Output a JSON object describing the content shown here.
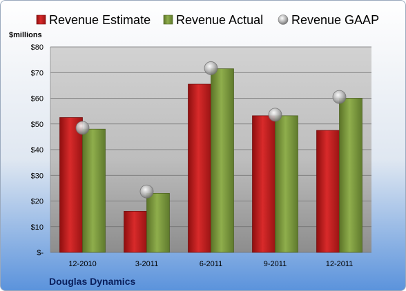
{
  "chart_data": {
    "type": "bar",
    "title": "",
    "ylabel": "$millions",
    "xlabel": "",
    "categories": [
      "12-2010",
      "3-2011",
      "6-2011",
      "9-2011",
      "12-2011"
    ],
    "series": [
      {
        "name": "Revenue Estimate",
        "kind": "bar",
        "color": "#cc1f1f",
        "values": [
          52.5,
          16,
          65.5,
          53.2,
          47.5
        ]
      },
      {
        "name": "Revenue Actual",
        "kind": "bar",
        "color": "#7e9a3e",
        "values": [
          48,
          23,
          71.5,
          53.2,
          60
        ]
      },
      {
        "name": "Revenue GAAP",
        "kind": "marker",
        "color": "#b8b8b8",
        "values": [
          48.5,
          23.7,
          71.7,
          53.6,
          60.5
        ]
      }
    ],
    "ylim": [
      0,
      80
    ],
    "yticks": [
      0,
      10,
      20,
      30,
      40,
      50,
      60,
      70,
      80
    ],
    "ytick_labels": [
      "$-",
      "$10",
      "$20",
      "$30",
      "$40",
      "$50",
      "$60",
      "$70",
      "$80"
    ],
    "grid": true,
    "legend_position": "top",
    "footer": "Douglas Dynamics"
  }
}
